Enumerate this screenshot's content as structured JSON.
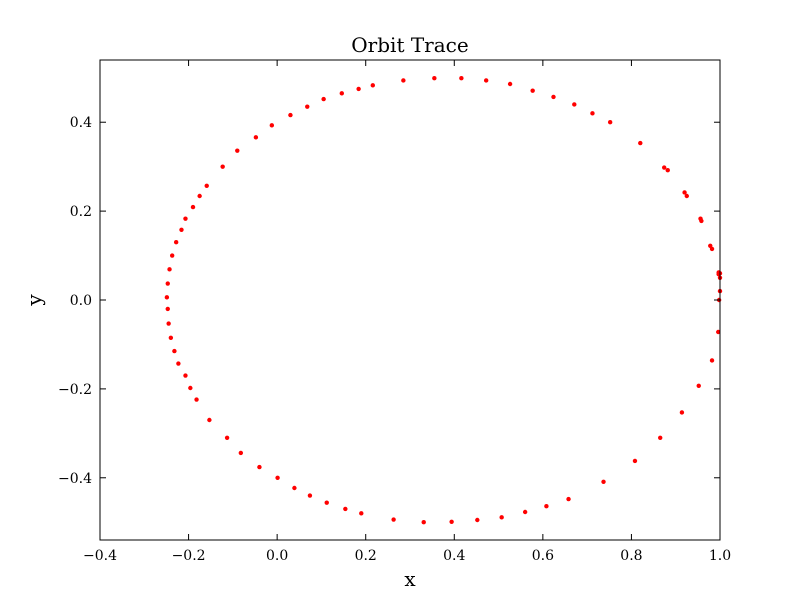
{
  "chart_data": {
    "type": "scatter",
    "title": "Orbit Trace",
    "xlabel": "x",
    "ylabel": "y",
    "xlim": [
      -0.4,
      1.0
    ],
    "ylim": [
      -0.54,
      0.54
    ],
    "xticks": [
      -0.4,
      -0.2,
      0.0,
      0.2,
      0.4,
      0.6,
      0.8,
      1.0
    ],
    "xtick_labels": [
      "−0.4",
      "−0.2",
      "0.0",
      "0.2",
      "0.4",
      "0.6",
      "0.8",
      "1.0"
    ],
    "yticks": [
      -0.4,
      -0.2,
      0.0,
      0.2,
      0.4
    ],
    "ytick_labels": [
      "−0.4",
      "−0.2",
      "0.0",
      "0.2",
      "0.4"
    ],
    "grid": false,
    "marker_color": "#ff0000",
    "series": [
      {
        "points": [
          [
            1.0,
            0.06
          ],
          [
            1.0,
            0.05
          ],
          [
            1.0,
            0.02
          ],
          [
            0.998,
            0.0
          ],
          [
            0.996,
            -0.072
          ],
          [
            0.982,
            -0.136
          ],
          [
            0.952,
            -0.193
          ],
          [
            0.914,
            -0.253
          ],
          [
            0.865,
            -0.31
          ],
          [
            0.808,
            -0.362
          ],
          [
            0.737,
            -0.409
          ],
          [
            0.658,
            -0.448
          ],
          [
            0.608,
            -0.464
          ],
          [
            0.56,
            -0.477
          ],
          [
            0.507,
            -0.489
          ],
          [
            0.452,
            -0.495
          ],
          [
            0.394,
            -0.499
          ],
          [
            0.331,
            -0.5
          ],
          [
            0.263,
            -0.494
          ],
          [
            0.19,
            -0.48
          ],
          [
            0.154,
            -0.47
          ],
          [
            0.112,
            -0.456
          ],
          [
            0.074,
            -0.44
          ],
          [
            0.039,
            -0.423
          ],
          [
            0.001,
            -0.4
          ],
          [
            -0.04,
            -0.376
          ],
          [
            -0.082,
            -0.344
          ],
          [
            -0.113,
            -0.31
          ],
          [
            -0.153,
            -0.27
          ],
          [
            -0.182,
            -0.224
          ],
          [
            -0.196,
            -0.198
          ],
          [
            -0.207,
            -0.17
          ],
          [
            -0.223,
            -0.143
          ],
          [
            -0.232,
            -0.115
          ],
          [
            -0.24,
            -0.085
          ],
          [
            -0.245,
            -0.053
          ],
          [
            -0.247,
            -0.02
          ],
          [
            -0.249,
            0.006
          ],
          [
            -0.247,
            0.037
          ],
          [
            -0.243,
            0.069
          ],
          [
            -0.237,
            0.1
          ],
          [
            -0.228,
            0.13
          ],
          [
            -0.216,
            0.158
          ],
          [
            -0.207,
            0.183
          ],
          [
            -0.19,
            0.209
          ],
          [
            -0.175,
            0.234
          ],
          [
            -0.159,
            0.257
          ],
          [
            -0.123,
            0.3
          ],
          [
            -0.09,
            0.336
          ],
          [
            -0.048,
            0.366
          ],
          [
            -0.012,
            0.393
          ],
          [
            0.03,
            0.416
          ],
          [
            0.068,
            0.435
          ],
          [
            0.105,
            0.452
          ],
          [
            0.146,
            0.465
          ],
          [
            0.184,
            0.475
          ],
          [
            0.216,
            0.483
          ],
          [
            0.285,
            0.494
          ],
          [
            0.355,
            0.499
          ],
          [
            0.416,
            0.499
          ],
          [
            0.472,
            0.494
          ],
          [
            0.526,
            0.486
          ],
          [
            0.577,
            0.471
          ],
          [
            0.624,
            0.457
          ],
          [
            0.671,
            0.44
          ],
          [
            0.712,
            0.42
          ],
          [
            0.752,
            0.4
          ],
          [
            0.82,
            0.353
          ],
          [
            0.874,
            0.298
          ],
          [
            0.882,
            0.292
          ],
          [
            0.92,
            0.242
          ],
          [
            0.925,
            0.234
          ],
          [
            0.956,
            0.183
          ],
          [
            0.958,
            0.178
          ],
          [
            0.978,
            0.122
          ],
          [
            0.982,
            0.115
          ],
          [
            0.997,
            0.058
          ],
          [
            0.997,
            0.062
          ]
        ]
      }
    ]
  }
}
